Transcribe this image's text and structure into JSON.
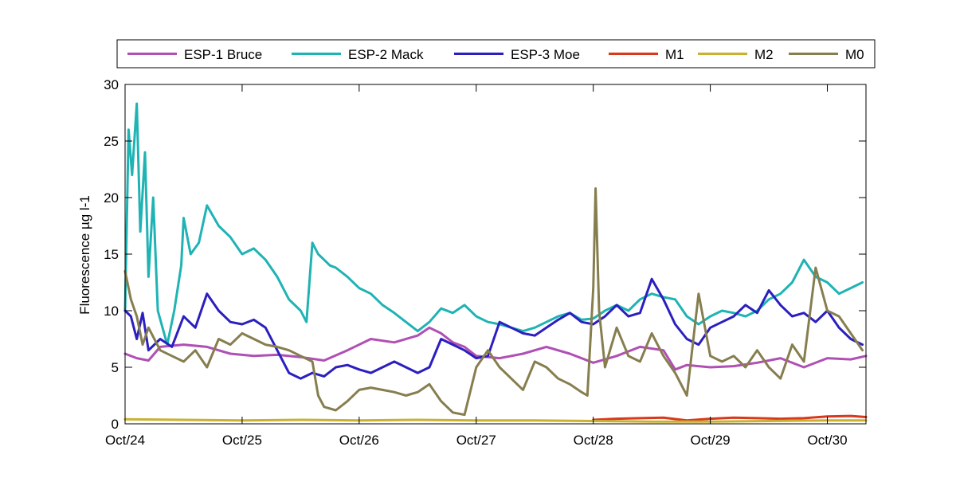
{
  "chart_data": {
    "type": "line",
    "ylabel": "Fluorescence µg l-1",
    "xlabel": "",
    "ylim": [
      0,
      30
    ],
    "xlim": [
      0,
      6.33
    ],
    "yticks": [
      0,
      5,
      10,
      15,
      20,
      25,
      30
    ],
    "xticks": [
      0,
      1,
      2,
      3,
      4,
      5,
      6
    ],
    "xtick_labels": [
      "Oct/24",
      "Oct/25",
      "Oct/26",
      "Oct/27",
      "Oct/28",
      "Oct/29",
      "Oct/30"
    ],
    "grid": false,
    "legend_position": "top",
    "series": [
      {
        "name": "ESP-1 Bruce",
        "color": "#b04fb4",
        "x": [
          0,
          0.1,
          0.2,
          0.3,
          0.5,
          0.7,
          0.9,
          1.1,
          1.3,
          1.5,
          1.7,
          1.9,
          2.1,
          2.3,
          2.5,
          2.6,
          2.7,
          2.8,
          2.9,
          3.0,
          3.2,
          3.4,
          3.6,
          3.8,
          4.0,
          4.2,
          4.4,
          4.6,
          4.7,
          4.8,
          5.0,
          5.2,
          5.4,
          5.5,
          5.6,
          5.8,
          6.0,
          6.2,
          6.33
        ],
        "y": [
          6.2,
          5.8,
          5.6,
          6.8,
          7.0,
          6.8,
          6.2,
          6.0,
          6.1,
          5.9,
          5.6,
          6.5,
          7.5,
          7.2,
          7.8,
          8.5,
          8.0,
          7.2,
          6.8,
          6.0,
          5.8,
          6.2,
          6.8,
          6.2,
          5.4,
          6.0,
          6.8,
          6.5,
          4.8,
          5.2,
          5.0,
          5.1,
          5.4,
          5.6,
          5.8,
          5.0,
          5.8,
          5.7,
          6.0
        ]
      },
      {
        "name": "ESP-2 Mack",
        "color": "#1fb3b4",
        "x": [
          0,
          0.03,
          0.06,
          0.1,
          0.13,
          0.17,
          0.2,
          0.24,
          0.28,
          0.32,
          0.36,
          0.42,
          0.48,
          0.5,
          0.56,
          0.63,
          0.7,
          0.8,
          0.9,
          1.0,
          1.1,
          1.2,
          1.3,
          1.4,
          1.5,
          1.55,
          1.6,
          1.65,
          1.7,
          1.75,
          1.8,
          1.9,
          2.0,
          2.1,
          2.2,
          2.3,
          2.4,
          2.5,
          2.6,
          2.7,
          2.8,
          2.9,
          3.0,
          3.1,
          3.2,
          3.3,
          3.4,
          3.5,
          3.6,
          3.7,
          3.8,
          3.9,
          4.0,
          4.1,
          4.2,
          4.3,
          4.4,
          4.5,
          4.6,
          4.7,
          4.8,
          4.9,
          5.0,
          5.1,
          5.2,
          5.3,
          5.4,
          5.5,
          5.6,
          5.7,
          5.8,
          5.9,
          6.0,
          6.1,
          6.2,
          6.3
        ],
        "y": [
          10.0,
          26.0,
          22.0,
          28.3,
          17.0,
          24.0,
          13.0,
          20.0,
          10.0,
          8.5,
          7.0,
          10.0,
          14.0,
          18.2,
          15.0,
          16.0,
          19.3,
          17.5,
          16.5,
          15.0,
          15.5,
          14.5,
          13.0,
          11.0,
          10.0,
          9.0,
          16.0,
          15.0,
          14.5,
          14.0,
          13.8,
          13.0,
          12.0,
          11.5,
          10.5,
          9.8,
          9.0,
          8.2,
          9.0,
          10.2,
          9.8,
          10.5,
          9.5,
          9.0,
          8.8,
          8.5,
          8.2,
          8.5,
          9.0,
          9.5,
          9.8,
          9.2,
          9.3,
          10.0,
          10.5,
          10.0,
          11.0,
          11.5,
          11.2,
          11.0,
          9.5,
          8.8,
          9.5,
          10.0,
          9.8,
          9.5,
          10.0,
          11.0,
          11.5,
          12.5,
          14.5,
          13.0,
          12.5,
          11.5,
          12.0,
          12.5
        ]
      },
      {
        "name": "ESP-3 Moe",
        "color": "#2b1fbf",
        "x": [
          0,
          0.05,
          0.1,
          0.15,
          0.2,
          0.3,
          0.4,
          0.5,
          0.6,
          0.7,
          0.8,
          0.9,
          1.0,
          1.1,
          1.2,
          1.3,
          1.4,
          1.5,
          1.6,
          1.7,
          1.8,
          1.9,
          2.0,
          2.1,
          2.2,
          2.3,
          2.4,
          2.5,
          2.6,
          2.7,
          2.8,
          2.9,
          3.0,
          3.1,
          3.2,
          3.3,
          3.4,
          3.5,
          3.6,
          3.7,
          3.8,
          3.9,
          4.0,
          4.1,
          4.2,
          4.3,
          4.4,
          4.5,
          4.6,
          4.7,
          4.8,
          4.9,
          5.0,
          5.1,
          5.2,
          5.3,
          5.4,
          5.5,
          5.6,
          5.7,
          5.8,
          5.9,
          6.0,
          6.1,
          6.2,
          6.3
        ],
        "y": [
          10.0,
          9.5,
          7.5,
          9.8,
          6.5,
          7.5,
          6.8,
          9.5,
          8.5,
          11.5,
          10.0,
          9.0,
          8.8,
          9.2,
          8.5,
          6.5,
          4.5,
          4.0,
          4.5,
          4.2,
          5.0,
          5.2,
          4.8,
          4.5,
          5.0,
          5.5,
          5.0,
          4.5,
          5.0,
          7.5,
          7.0,
          6.5,
          5.8,
          6.0,
          9.0,
          8.5,
          8.0,
          7.8,
          8.5,
          9.2,
          9.8,
          9.0,
          8.8,
          9.5,
          10.5,
          9.5,
          9.8,
          12.8,
          11.0,
          8.8,
          7.5,
          7.0,
          8.5,
          9.0,
          9.5,
          10.5,
          9.8,
          11.8,
          10.5,
          9.5,
          9.8,
          9.0,
          10.0,
          8.5,
          7.5,
          7.0
        ]
      },
      {
        "name": "M1",
        "color": "#d8391c",
        "x": [
          4.0,
          4.2,
          4.4,
          4.6,
          4.8,
          5.0,
          5.2,
          5.4,
          5.6,
          5.8,
          6.0,
          6.2,
          6.33
        ],
        "y": [
          0.35,
          0.45,
          0.5,
          0.55,
          0.3,
          0.45,
          0.55,
          0.5,
          0.45,
          0.5,
          0.65,
          0.7,
          0.6
        ]
      },
      {
        "name": "M2",
        "color": "#c9b132",
        "x": [
          0,
          0.5,
          1.0,
          1.5,
          2.0,
          2.5,
          3.0,
          3.5,
          4.0,
          4.5,
          5.0,
          5.5,
          6.0,
          6.33
        ],
        "y": [
          0.4,
          0.35,
          0.3,
          0.35,
          0.3,
          0.35,
          0.3,
          0.3,
          0.25,
          0.2,
          0.2,
          0.25,
          0.3,
          0.3
        ]
      },
      {
        "name": "M0",
        "color": "#877e4f",
        "x": [
          0,
          0.05,
          0.1,
          0.15,
          0.2,
          0.3,
          0.4,
          0.5,
          0.6,
          0.7,
          0.8,
          0.9,
          1.0,
          1.1,
          1.2,
          1.3,
          1.4,
          1.5,
          1.6,
          1.65,
          1.7,
          1.8,
          1.9,
          2.0,
          2.1,
          2.2,
          2.3,
          2.4,
          2.5,
          2.6,
          2.7,
          2.8,
          2.9,
          3.0,
          3.1,
          3.2,
          3.3,
          3.4,
          3.5,
          3.6,
          3.7,
          3.8,
          3.9,
          3.95,
          4.0,
          4.02,
          4.05,
          4.1,
          4.2,
          4.3,
          4.4,
          4.5,
          4.6,
          4.7,
          4.8,
          4.9,
          5.0,
          5.1,
          5.2,
          5.3,
          5.4,
          5.5,
          5.6,
          5.7,
          5.8,
          5.9,
          6.0,
          6.1,
          6.2,
          6.3
        ],
        "y": [
          13.5,
          11.0,
          9.5,
          7.0,
          8.5,
          6.5,
          6.0,
          5.5,
          6.5,
          5.0,
          7.5,
          7.0,
          8.0,
          7.5,
          7.0,
          6.8,
          6.5,
          6.0,
          5.5,
          2.5,
          1.5,
          1.2,
          2.0,
          3.0,
          3.2,
          3.0,
          2.8,
          2.5,
          2.8,
          3.5,
          2.0,
          1.0,
          0.8,
          5.0,
          6.5,
          5.0,
          4.0,
          3.0,
          5.5,
          5.0,
          4.0,
          3.5,
          2.8,
          2.5,
          12.0,
          20.8,
          10.0,
          5.0,
          8.5,
          6.0,
          5.5,
          8.0,
          6.0,
          4.5,
          2.5,
          11.5,
          6.0,
          5.5,
          6.0,
          5.0,
          6.5,
          5.0,
          4.0,
          7.0,
          5.5,
          13.8,
          10.0,
          9.5,
          8.0,
          6.5
        ]
      }
    ]
  }
}
